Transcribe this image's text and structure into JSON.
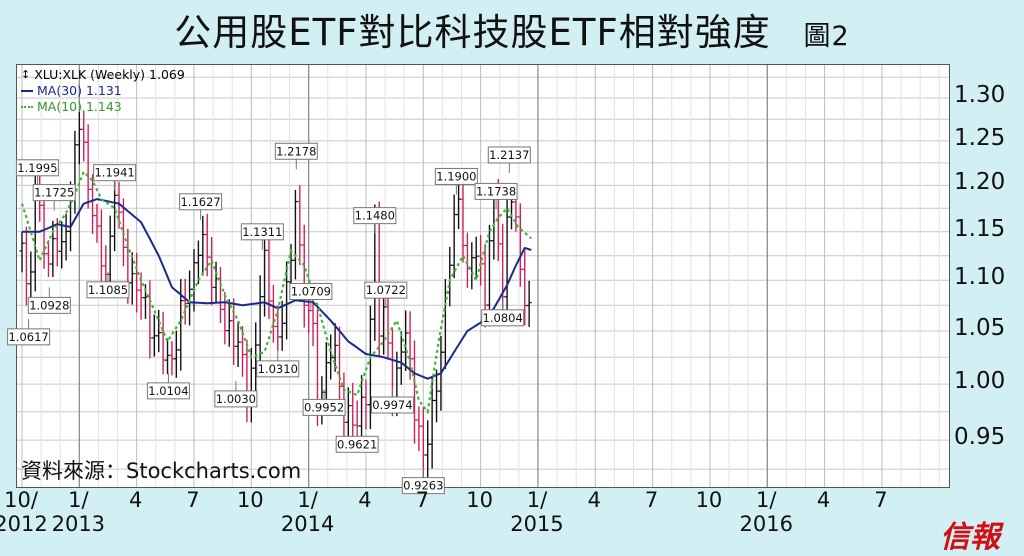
{
  "title": "公用股ETF對比科技股ETF相對強度",
  "figure_label": "圖2",
  "source": "資料來源：Stockcharts.com",
  "logo": "信報",
  "legend": {
    "main": "XLU:XLK (Weekly) 1.069",
    "ma30": "MA(30) 1.131",
    "ma10": "MA(10) 1.143"
  },
  "colors": {
    "up_bar": "#111111",
    "down_bar": "#d0205a",
    "ma30": "#1a2a8c",
    "ma10": "#3fb83a",
    "background": "#d2f0f3"
  },
  "y_ticks": [
    "1.30",
    "1.25",
    "1.20",
    "1.15",
    "1.10",
    "1.05",
    "1.00",
    "0.95"
  ],
  "x_ticks": [
    {
      "label": "10/",
      "year": "2012"
    },
    {
      "label": "1/",
      "year": "2013"
    },
    {
      "label": "4",
      "year": ""
    },
    {
      "label": "7",
      "year": ""
    },
    {
      "label": "10",
      "year": ""
    },
    {
      "label": "1/",
      "year": "2014"
    },
    {
      "label": "4",
      "year": ""
    },
    {
      "label": "7",
      "year": ""
    },
    {
      "label": "10",
      "year": ""
    },
    {
      "label": "1/",
      "year": "2015"
    },
    {
      "label": "4",
      "year": ""
    },
    {
      "label": "7",
      "year": ""
    },
    {
      "label": "10",
      "year": ""
    },
    {
      "label": "1/",
      "year": "2016"
    },
    {
      "label": "4",
      "year": ""
    },
    {
      "label": "7",
      "year": ""
    }
  ],
  "chart_data": {
    "type": "line",
    "y_scale": "log",
    "ylim": [
      0.91,
      1.34
    ],
    "grid": true,
    "legend_position": "top-left",
    "series": [
      {
        "name": "XLU:XLK (Weekly)",
        "last": 1.069
      },
      {
        "name": "MA(30)",
        "last": 1.131
      },
      {
        "name": "MA(10)",
        "last": 1.143
      }
    ],
    "x_months_from_oct_2012": [
      0,
      3,
      6,
      9,
      12,
      15,
      18,
      21,
      24,
      27,
      30,
      33,
      36,
      39,
      42,
      45
    ],
    "weekly_close_keypoints": [
      [
        0,
        1.13
      ],
      [
        1.5,
        1.0617
      ],
      [
        2.5,
        1.19
      ],
      [
        3.5,
        1.1995
      ],
      [
        5,
        1.13
      ],
      [
        6.2,
        1.0928
      ],
      [
        7.3,
        1.1725
      ],
      [
        8.5,
        1.12
      ],
      [
        11,
        1.18
      ],
      [
        12.2,
        1.25
      ],
      [
        13.2,
        1.29
      ],
      [
        14.8,
        1.2
      ],
      [
        17,
        1.14
      ],
      [
        19.5,
        1.1085
      ],
      [
        21,
        1.1941
      ],
      [
        22.5,
        1.14
      ],
      [
        25,
        1.1
      ],
      [
        28,
        1.07
      ],
      [
        31,
        1.04
      ],
      [
        33.2,
        1.0104
      ],
      [
        36,
        1.07
      ],
      [
        38.5,
        1.09
      ],
      [
        40.5,
        1.1627
      ],
      [
        42.5,
        1.1
      ],
      [
        45,
        1.08
      ],
      [
        47.5,
        1.04
      ],
      [
        49.5,
        1.03
      ],
      [
        51.5,
        1.0
      ],
      [
        53.5,
        1.04
      ],
      [
        54.5,
        1.1311
      ],
      [
        56.5,
        1.08
      ],
      [
        58,
        1.031
      ],
      [
        61,
        1.12
      ],
      [
        62.2,
        1.2178
      ],
      [
        63.5,
        1.07
      ],
      [
        65.5,
        1.0709
      ],
      [
        67,
        1.0
      ],
      [
        68.5,
        0.9952
      ],
      [
        70.5,
        1.04
      ],
      [
        72.5,
        0.99
      ],
      [
        74.5,
        0.96
      ],
      [
        76,
        0.9621
      ],
      [
        78,
        1.0
      ],
      [
        79,
        1.06
      ],
      [
        80,
        1.148
      ],
      [
        81,
        1.05
      ],
      [
        82.5,
        1.0722
      ],
      [
        84,
        0.9974
      ],
      [
        85.5,
        1.0
      ],
      [
        86.5,
        1.06
      ],
      [
        88,
        1.02
      ],
      [
        89.5,
        0.97
      ],
      [
        91,
        0.9263
      ],
      [
        93.5,
        0.99
      ],
      [
        96,
        1.07
      ],
      [
        98.5,
        1.19
      ],
      [
        99.5,
        1.18
      ],
      [
        101,
        1.1
      ],
      [
        103,
        1.13
      ],
      [
        105,
        1.09
      ],
      [
        106.5,
        1.17
      ],
      [
        107.5,
        1.1738
      ],
      [
        109,
        1.0804
      ],
      [
        110.5,
        1.2137
      ],
      [
        111.5,
        1.18
      ],
      [
        112.5,
        1.12
      ],
      [
        114,
        1.08
      ],
      [
        115.5,
        1.069
      ]
    ],
    "ma30_keypoints": [
      [
        0,
        1.15
      ],
      [
        4,
        1.15
      ],
      [
        8,
        1.158
      ],
      [
        11,
        1.155
      ],
      [
        14,
        1.18
      ],
      [
        17,
        1.185
      ],
      [
        22,
        1.18
      ],
      [
        27,
        1.16
      ],
      [
        31,
        1.125
      ],
      [
        34,
        1.093
      ],
      [
        38,
        1.078
      ],
      [
        42,
        1.077
      ],
      [
        46,
        1.078
      ],
      [
        50,
        1.075
      ],
      [
        55,
        1.078
      ],
      [
        58,
        1.072
      ],
      [
        62,
        1.08
      ],
      [
        66,
        1.078
      ],
      [
        70,
        1.06
      ],
      [
        74,
        1.04
      ],
      [
        78,
        1.028
      ],
      [
        82,
        1.025
      ],
      [
        86,
        1.02
      ],
      [
        89,
        1.01
      ],
      [
        92,
        1.005
      ],
      [
        95,
        1.01
      ],
      [
        98,
        1.03
      ],
      [
        101,
        1.05
      ],
      [
        104,
        1.058
      ],
      [
        107,
        1.072
      ],
      [
        110,
        1.095
      ],
      [
        112,
        1.115
      ],
      [
        114,
        1.133
      ],
      [
        115.5,
        1.131
      ]
    ],
    "ma10_keypoints": [
      [
        0,
        1.18
      ],
      [
        2,
        1.15
      ],
      [
        4,
        1.12
      ],
      [
        7,
        1.15
      ],
      [
        10,
        1.17
      ],
      [
        12,
        1.19
      ],
      [
        14,
        1.215
      ],
      [
        16,
        1.205
      ],
      [
        18,
        1.185
      ],
      [
        21,
        1.175
      ],
      [
        24,
        1.135
      ],
      [
        27,
        1.1
      ],
      [
        30,
        1.07
      ],
      [
        33,
        1.04
      ],
      [
        36,
        1.06
      ],
      [
        40,
        1.1
      ],
      [
        43,
        1.12
      ],
      [
        46,
        1.085
      ],
      [
        49,
        1.06
      ],
      [
        52,
        1.025
      ],
      [
        55,
        1.03
      ],
      [
        58,
        1.07
      ],
      [
        61,
        1.13
      ],
      [
        64,
        1.115
      ],
      [
        67,
        1.075
      ],
      [
        70,
        1.03
      ],
      [
        73,
        0.995
      ],
      [
        76,
        0.99
      ],
      [
        79,
        1.025
      ],
      [
        82,
        1.04
      ],
      [
        85,
        1.06
      ],
      [
        88,
        1.02
      ],
      [
        90,
        0.985
      ],
      [
        92,
        0.975
      ],
      [
        94.5,
        1.04
      ],
      [
        97,
        1.1
      ],
      [
        100,
        1.125
      ],
      [
        103,
        1.1
      ],
      [
        106,
        1.15
      ],
      [
        108,
        1.165
      ],
      [
        110,
        1.175
      ],
      [
        112.5,
        1.155
      ],
      [
        115.5,
        1.143
      ]
    ],
    "labels": [
      {
        "text": "1.0617",
        "x": 1.5,
        "y": 1.0617,
        "below": true
      },
      {
        "text": "1.1995",
        "x": 3.5,
        "y": 1.1995,
        "below": false
      },
      {
        "text": "1.0928",
        "x": 6.2,
        "y": 1.0928,
        "below": true
      },
      {
        "text": "1.1725",
        "x": 7.3,
        "y": 1.1725,
        "below": false
      },
      {
        "text": "1.1085",
        "x": 19.5,
        "y": 1.1085,
        "below": true
      },
      {
        "text": "1.1941",
        "x": 21,
        "y": 1.1941,
        "below": false
      },
      {
        "text": "1.0104",
        "x": 33.2,
        "y": 1.0104,
        "below": true
      },
      {
        "text": "1.1627",
        "x": 40.5,
        "y": 1.1627,
        "below": false
      },
      {
        "text": "1.0030",
        "x": 48.5,
        "y": 1.003,
        "below": true
      },
      {
        "text": "1.1311",
        "x": 54.5,
        "y": 1.1311,
        "below": false
      },
      {
        "text": "1.0310",
        "x": 58,
        "y": 1.031,
        "below": true
      },
      {
        "text": "1.2178",
        "x": 62.2,
        "y": 1.2178,
        "below": false
      },
      {
        "text": "1.0709",
        "x": 65.5,
        "y": 1.0709,
        "below": false
      },
      {
        "text": "0.9952",
        "x": 68.5,
        "y": 0.9952,
        "below": true
      },
      {
        "text": "0.9621",
        "x": 76,
        "y": 0.9621,
        "below": true
      },
      {
        "text": "1.1480",
        "x": 80,
        "y": 1.148,
        "below": false
      },
      {
        "text": "1.0722",
        "x": 82.5,
        "y": 1.0722,
        "below": false
      },
      {
        "text": "0.9974",
        "x": 84,
        "y": 0.9974,
        "below": true
      },
      {
        "text": "0.9263",
        "x": 91,
        "y": 0.9263,
        "below": true
      },
      {
        "text": "1.1900",
        "x": 98.5,
        "y": 1.19,
        "below": false
      },
      {
        "text": "1.1738",
        "x": 107.5,
        "y": 1.1738,
        "below": false
      },
      {
        "text": "1.0804",
        "x": 109,
        "y": 1.0804,
        "below": true
      },
      {
        "text": "1.2137",
        "x": 110.5,
        "y": 1.2137,
        "below": false
      }
    ]
  }
}
